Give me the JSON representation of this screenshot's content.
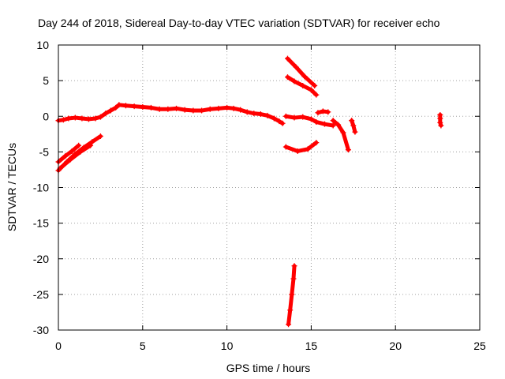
{
  "chart_data": {
    "type": "scatter",
    "title": "Day 244 of 2018, Sidereal Day-to-day VTEC variation (SDTVAR) for receiver echo",
    "xlabel": "GPS time / hours",
    "ylabel": "SDTVAR / TECUs",
    "xlim": [
      0,
      25
    ],
    "ylim": [
      -30,
      10
    ],
    "xticks": [
      0,
      5,
      10,
      15,
      20,
      25
    ],
    "yticks": [
      10,
      5,
      0,
      -5,
      -10,
      -15,
      -20,
      -25,
      -30
    ],
    "xtick_labels": [
      "0",
      "5",
      "10",
      "15",
      "20",
      "25"
    ],
    "ytick_labels": [
      "10",
      "5",
      "0",
      "-5",
      "-10",
      "-15",
      "-20",
      "-25",
      "-30"
    ],
    "grid": true,
    "marker": "+",
    "series": [
      {
        "name": "SDTVAR",
        "color": "#ff0000",
        "segments": [
          {
            "x": [
              0.0,
              0.3,
              0.6,
              1.0,
              1.4,
              1.8,
              2.2,
              2.5,
              2.8,
              3.1,
              3.4,
              3.6,
              4.0,
              4.5,
              5.0,
              5.5,
              6.0,
              6.5,
              7.0,
              7.5,
              8.0,
              8.5,
              9.0,
              9.5,
              10.0,
              10.4,
              10.8,
              11.2,
              11.6,
              12.0,
              12.4,
              12.8,
              13.1,
              13.3
            ],
            "y": [
              -0.6,
              -0.5,
              -0.3,
              -0.2,
              -0.3,
              -0.4,
              -0.3,
              -0.1,
              0.4,
              0.8,
              1.2,
              1.6,
              1.5,
              1.4,
              1.3,
              1.2,
              1.0,
              1.0,
              1.1,
              0.9,
              0.8,
              0.8,
              1.0,
              1.1,
              1.2,
              1.1,
              0.9,
              0.6,
              0.4,
              0.3,
              0.1,
              -0.3,
              -0.7,
              -1.0
            ]
          },
          {
            "x": [
              0.0,
              0.5,
              1.0,
              1.5,
              2.0,
              2.5
            ],
            "y": [
              -7.6,
              -6.4,
              -5.3,
              -4.4,
              -3.6,
              -2.8
            ]
          },
          {
            "x": [
              0.0,
              0.4,
              0.8,
              1.2
            ],
            "y": [
              -6.4,
              -5.6,
              -4.9,
              -4.1
            ]
          },
          {
            "x": [
              0.1,
              0.7,
              1.3,
              1.9
            ],
            "y": [
              -7.3,
              -6.1,
              -5.0,
              -4.1
            ]
          },
          {
            "x": [
              13.5,
              14.0,
              14.5,
              15.0,
              15.3,
              15.8,
              16.3
            ],
            "y": [
              0.0,
              -0.2,
              -0.1,
              -0.4,
              -0.8,
              -1.1,
              -1.3
            ]
          },
          {
            "x": [
              13.5,
              14.2,
              14.8,
              15.3
            ],
            "y": [
              -4.3,
              -4.9,
              -4.6,
              -3.7
            ]
          },
          {
            "x": [
              13.6,
              14.1,
              14.6,
              15.2
            ],
            "y": [
              8.1,
              6.9,
              5.6,
              4.3
            ]
          },
          {
            "x": [
              13.6,
              14.0,
              14.5,
              15.0,
              15.3
            ],
            "y": [
              5.5,
              4.9,
              4.3,
              3.7,
              3.0
            ]
          },
          {
            "x": [
              15.4,
              15.7,
              16.0
            ],
            "y": [
              0.5,
              0.7,
              0.6
            ]
          },
          {
            "x": [
              16.3,
              16.6,
              16.9,
              17.2
            ],
            "y": [
              -0.6,
              -1.2,
              -2.3,
              -4.7
            ]
          },
          {
            "x": [
              17.4,
              17.5,
              17.6
            ],
            "y": [
              -0.6,
              -1.3,
              -2.2
            ]
          },
          {
            "x": [
              13.65,
              13.75,
              13.85,
              13.95,
              14.0
            ],
            "y": [
              -29.2,
              -27.2,
              -25.0,
              -22.8,
              -21.0
            ]
          },
          {
            "x": [
              22.65,
              22.65,
              22.65,
              22.7
            ],
            "y": [
              0.2,
              -0.3,
              -0.9,
              -1.3
            ]
          }
        ]
      }
    ]
  }
}
